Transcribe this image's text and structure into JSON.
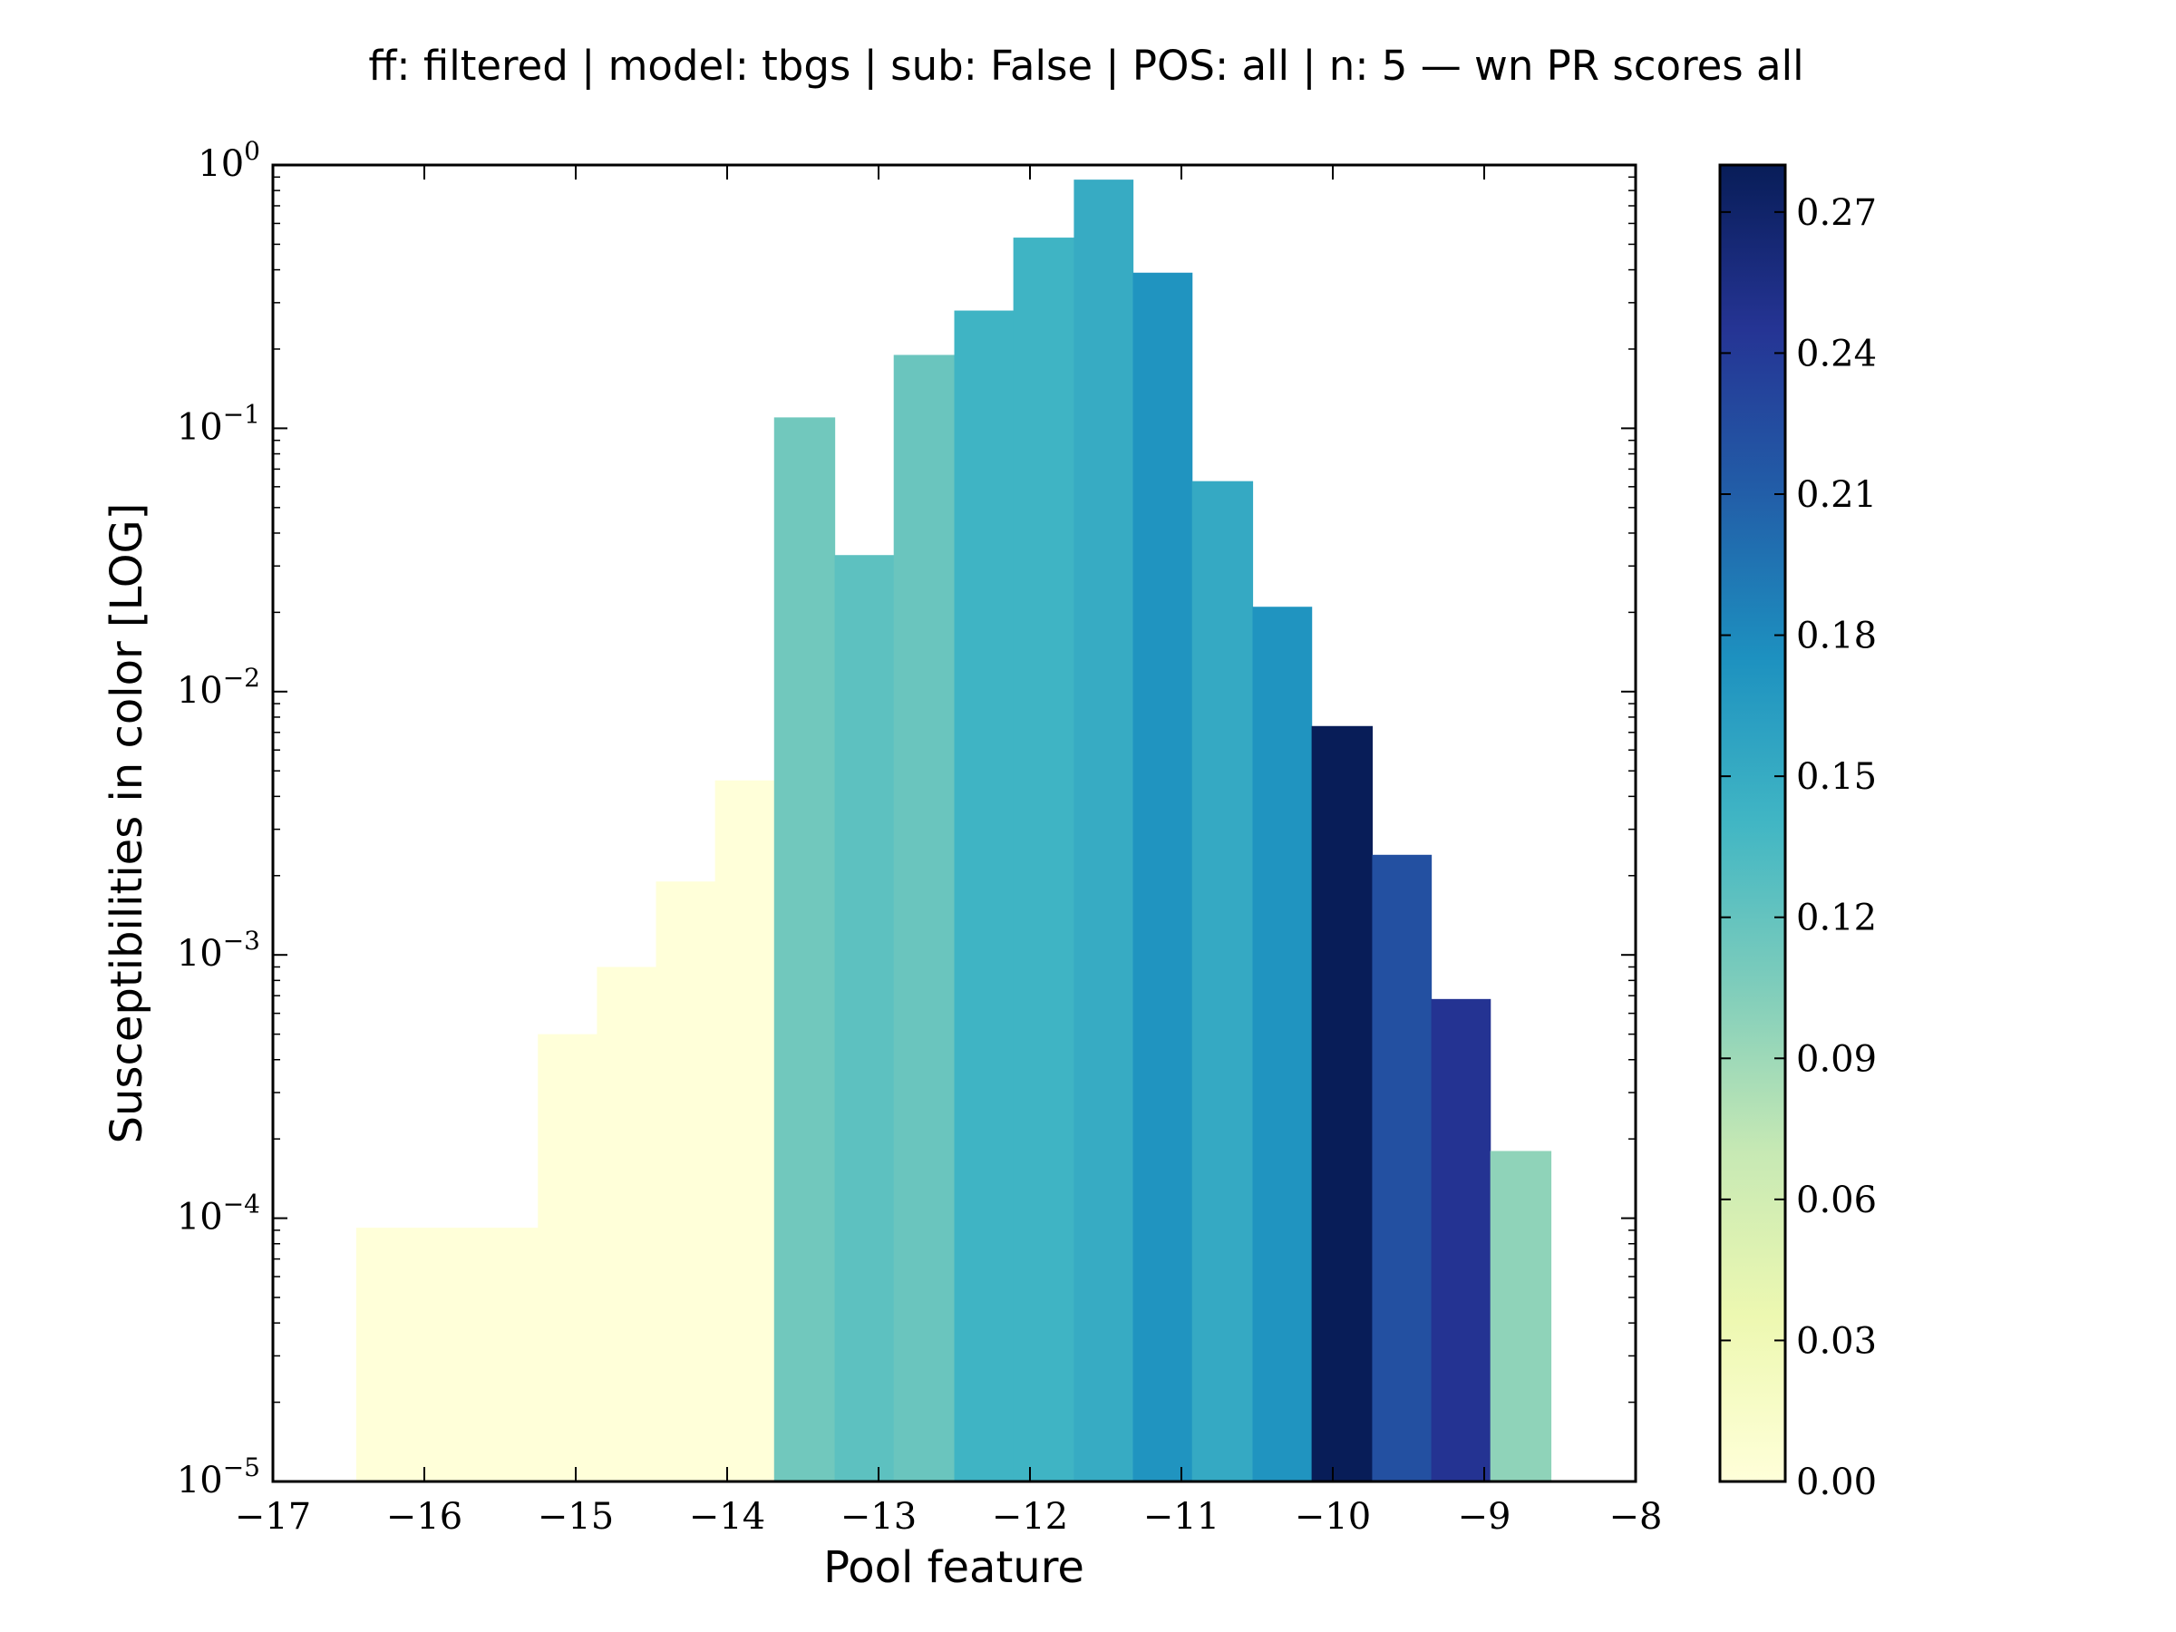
{
  "chart_data": {
    "type": "bar",
    "title": "ff: filtered | model: tbgs | sub: False | POS: all | n: 5 — wn PR scores all",
    "xlabel": "Pool feature",
    "ylabel": "Susceptibilities in color [LOG]",
    "xlim": [
      -17,
      -8
    ],
    "ylim": [
      1e-05,
      1
    ],
    "y_scale": "log",
    "grid": false,
    "x_tick_labels": [
      "−17",
      "−16",
      "−15",
      "−14",
      "−13",
      "−12",
      "−11",
      "−10",
      "−9",
      "−8"
    ],
    "y_tick_labels": [
      {
        "base": "10",
        "exp": "−5"
      },
      {
        "base": "10",
        "exp": "−4"
      },
      {
        "base": "10",
        "exp": "−3"
      },
      {
        "base": "10",
        "exp": "−2"
      },
      {
        "base": "10",
        "exp": "−1"
      },
      {
        "base": "10",
        "exp": "0"
      }
    ],
    "bars": [
      {
        "x0": -16.45,
        "x1": -15.25,
        "value": 9.2e-05,
        "color_value": 0.0
      },
      {
        "x0": -15.25,
        "x1": -14.86,
        "value": 0.0005,
        "color_value": 0.0
      },
      {
        "x0": -14.86,
        "x1": -14.47,
        "value": 0.0009,
        "color_value": 0.0
      },
      {
        "x0": -14.47,
        "x1": -14.08,
        "value": 0.0019,
        "color_value": 0.0
      },
      {
        "x0": -14.08,
        "x1": -13.69,
        "value": 0.0046,
        "color_value": 0.0
      },
      {
        "x0": -13.69,
        "x1": -13.29,
        "value": 0.11,
        "color_value": 0.113
      },
      {
        "x0": -13.29,
        "x1": -12.9,
        "value": 0.033,
        "color_value": 0.124
      },
      {
        "x0": -12.9,
        "x1": -12.5,
        "value": 0.19,
        "color_value": 0.117
      },
      {
        "x0": -12.5,
        "x1": -12.11,
        "value": 0.28,
        "color_value": 0.142
      },
      {
        "x0": -12.11,
        "x1": -11.71,
        "value": 0.53,
        "color_value": 0.142
      },
      {
        "x0": -11.71,
        "x1": -11.32,
        "value": 0.88,
        "color_value": 0.15
      },
      {
        "x0": -11.32,
        "x1": -10.93,
        "value": 0.39,
        "color_value": 0.172
      },
      {
        "x0": -10.93,
        "x1": -10.53,
        "value": 0.063,
        "color_value": 0.152
      },
      {
        "x0": -10.53,
        "x1": -10.14,
        "value": 0.021,
        "color_value": 0.172
      },
      {
        "x0": -10.14,
        "x1": -9.74,
        "value": 0.0074,
        "color_value": 0.28
      },
      {
        "x0": -9.74,
        "x1": -9.35,
        "value": 0.0024,
        "color_value": 0.222
      },
      {
        "x0": -9.35,
        "x1": -8.96,
        "value": 0.00068,
        "color_value": 0.246
      },
      {
        "x0": -8.96,
        "x1": -8.56,
        "value": 0.00018,
        "color_value": 0.097
      }
    ],
    "colorbar": {
      "colormap": "YlGnBu",
      "range": [
        0,
        0.28
      ],
      "tick_labels": [
        "0.00",
        "0.03",
        "0.06",
        "0.09",
        "0.12",
        "0.15",
        "0.18",
        "0.21",
        "0.24",
        "0.27"
      ],
      "stops": [
        "#ffffd9",
        "#edf8b1",
        "#c7e9b4",
        "#7fcdbb",
        "#41b6c4",
        "#1d91c0",
        "#225ea8",
        "#253494",
        "#081d58"
      ]
    }
  }
}
